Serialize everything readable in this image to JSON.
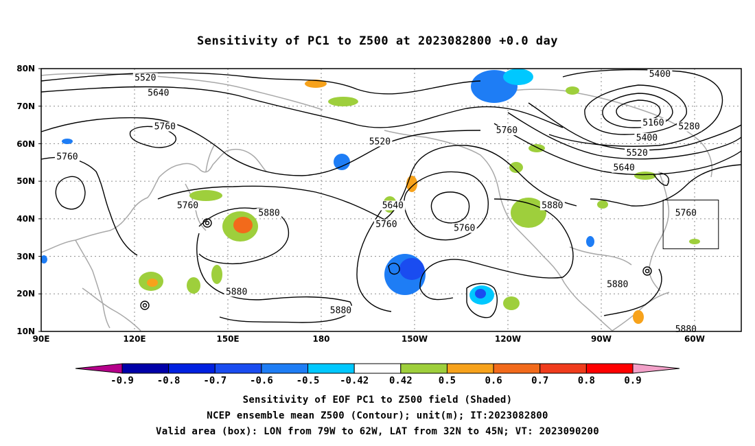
{
  "title": "Sensitivity of PC1 to Z500 at 2023082800 +0.0 day",
  "lat_labels": [
    "80N",
    "70N",
    "60N",
    "50N",
    "40N",
    "30N",
    "20N",
    "10N"
  ],
  "lon_labels": [
    "90E",
    "120E",
    "150E",
    "180",
    "150W",
    "120W",
    "90W",
    "60W"
  ],
  "contour_labels": [
    {
      "text": "5520",
      "lon": 122,
      "lat": 77
    },
    {
      "text": "5640",
      "lon": 126,
      "lat": 73
    },
    {
      "text": "5760",
      "lon": 128,
      "lat": 64
    },
    {
      "text": "5760",
      "lon": 98,
      "lat": 56
    },
    {
      "text": "5760",
      "lon": 135,
      "lat": 43
    },
    {
      "text": "5880",
      "lon": 160,
      "lat": 41
    },
    {
      "text": "5880",
      "lon": 150,
      "lat": 20
    },
    {
      "text": "5880",
      "lon": -178,
      "lat": 15
    },
    {
      "text": "5520",
      "lon": -166,
      "lat": 60
    },
    {
      "text": "5640",
      "lon": -162,
      "lat": 43
    },
    {
      "text": "5760",
      "lon": -164,
      "lat": 38
    },
    {
      "text": "5760",
      "lon": -140,
      "lat": 37
    },
    {
      "text": "5760",
      "lon": -127,
      "lat": 63
    },
    {
      "text": "5880",
      "lon": -113,
      "lat": 43
    },
    {
      "text": "5880",
      "lon": -93,
      "lat": 22
    },
    {
      "text": "5880",
      "lon": -72,
      "lat": 10
    },
    {
      "text": "5400",
      "lon": -80,
      "lat": 78
    },
    {
      "text": "5160",
      "lon": -82,
      "lat": 65
    },
    {
      "text": "5280",
      "lon": -71,
      "lat": 64
    },
    {
      "text": "5400",
      "lon": -84,
      "lat": 61
    },
    {
      "text": "5520",
      "lon": -87,
      "lat": 57
    },
    {
      "text": "5640",
      "lon": -91,
      "lat": 53
    },
    {
      "text": "5760",
      "lon": -72,
      "lat": 41
    }
  ],
  "valid_box": {
    "lon_min": -79,
    "lon_max": -62,
    "lat_min": 32,
    "lat_max": 45
  },
  "colorbar": {
    "labels": [
      "-0.9",
      "-0.8",
      "-0.7",
      "-0.6",
      "-0.5",
      "-0.42",
      "0.42",
      "0.5",
      "0.6",
      "0.7",
      "0.8",
      "0.9"
    ],
    "low_extend_color": "#b5008a",
    "high_extend_color": "#f2a0c8",
    "colors": [
      "#0000a8",
      "#0020e0",
      "#1a4cf0",
      "#1e7df5",
      "#00c8ff",
      "#ffffff",
      "#9ecf3c",
      "#f7a21b",
      "#f26a1b",
      "#f03c1c",
      "#ff0000"
    ]
  },
  "caption": {
    "line1": "Sensitivity of EOF PC1 to Z500 field (Shaded)",
    "line2": "NCEP ensemble mean Z500 (Contour); unit(m); IT:2023082800",
    "line3": "Valid area (box): LON from 79W to 62W, LAT from 32N to 45N; VT: 2023090200"
  }
}
